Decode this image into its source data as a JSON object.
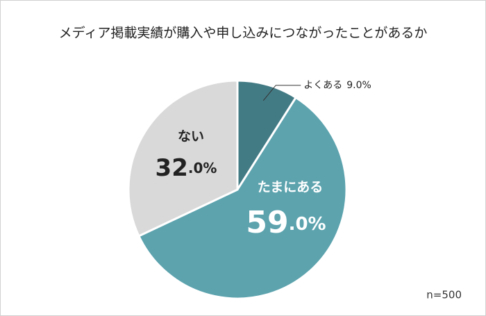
{
  "chart_data": {
    "type": "pie",
    "title": "メディア掲載実績が購入や申し込みにつながったことがあるか",
    "categories": [
      "よくある",
      "たまにある",
      "ない"
    ],
    "values": [
      9.0,
      59.0,
      32.0
    ],
    "value_labels": [
      "9.0%",
      "59.0%",
      "32.0%"
    ],
    "colors": [
      "#437b85",
      "#5ca3ae",
      "#d9d9d9"
    ],
    "note": "n=500"
  }
}
